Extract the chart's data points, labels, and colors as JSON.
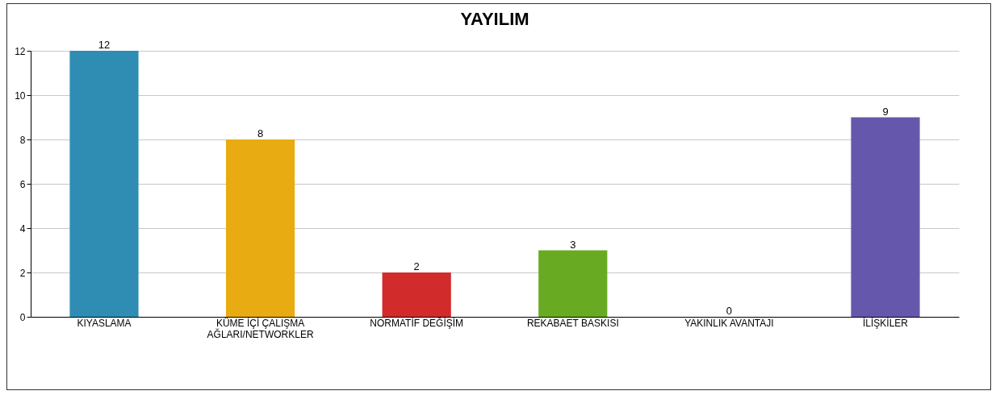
{
  "chart_data": {
    "type": "bar",
    "title": "YAYILIM",
    "categories": [
      "KIYASLAMA",
      "KÜME İÇİ ÇALIŞMA AĞLARI/NETWORKLER",
      "NORMATİF DEĞİŞİM",
      "REKABAET BASKISI",
      "YAKINLIK AVANTAJI",
      "İLİŞKİLER"
    ],
    "values": [
      12,
      8,
      2,
      3,
      0,
      9
    ],
    "colors": [
      "#2f8db3",
      "#e9ab12",
      "#d22b2b",
      "#68aa22",
      "#888888",
      "#6558ac"
    ],
    "ylim": [
      0,
      12
    ],
    "yticks": [
      0,
      2,
      4,
      6,
      8,
      10,
      12
    ],
    "grid": "y",
    "data_labels": true
  }
}
